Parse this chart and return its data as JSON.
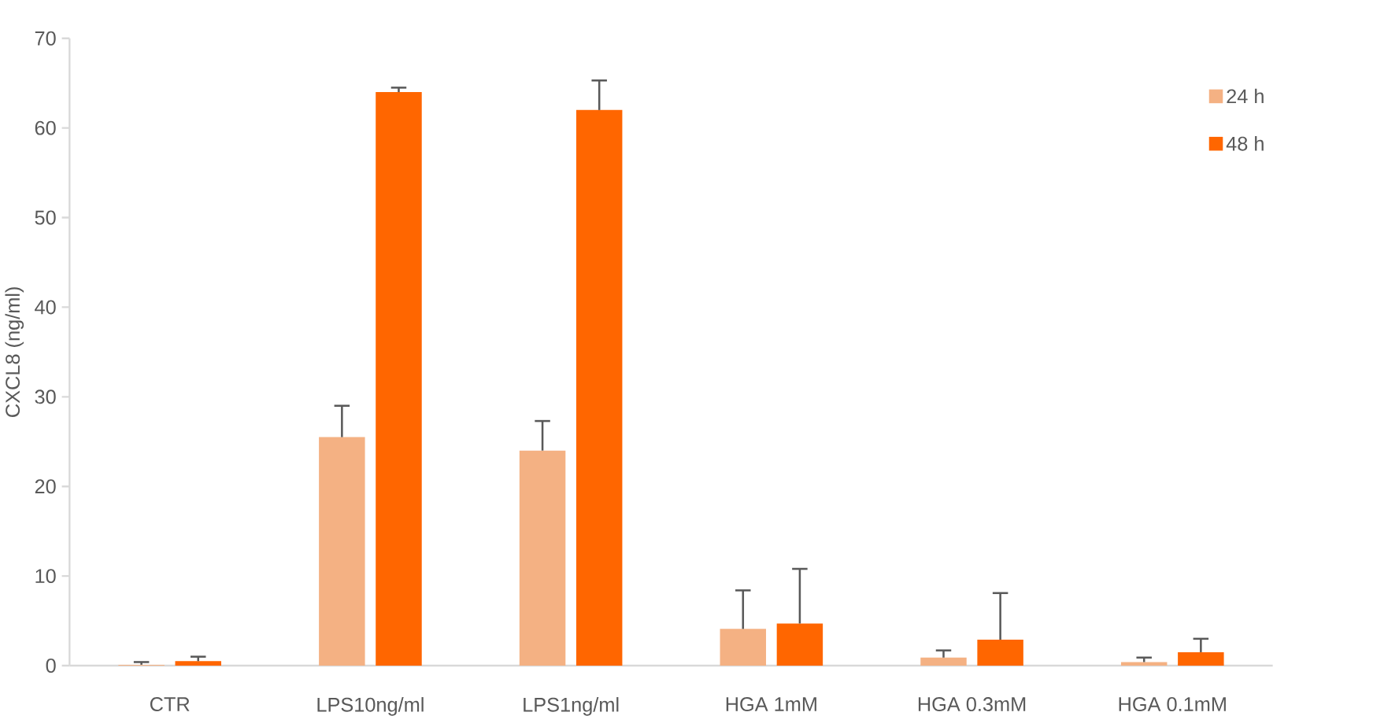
{
  "chart_data": {
    "type": "bar",
    "ylabel": "CXCL8 (ng/ml)",
    "categories": [
      "CTR",
      "LPS10ng/ml",
      "LPS1ng/ml",
      "HGA 1mM",
      "HGA 0.3mM",
      "HGA 0.1mM"
    ],
    "series": [
      {
        "name": "24 h",
        "color": "#f4b183",
        "values": [
          0.1,
          25.5,
          24,
          4.1,
          0.9,
          0.4
        ],
        "errors": [
          [
            0.1,
            0.4
          ],
          [
            25.5,
            29
          ],
          [
            24,
            27.3
          ],
          [
            4.1,
            8.4
          ],
          [
            0.9,
            1.7
          ],
          [
            0.4,
            0.9
          ]
        ]
      },
      {
        "name": "48 h",
        "color": "#ff6600",
        "values": [
          0.5,
          64,
          62,
          4.7,
          2.9,
          1.5
        ],
        "errors": [
          [
            0.5,
            1
          ],
          [
            64,
            64.5
          ],
          [
            62,
            65.3
          ],
          [
            4.7,
            10.8
          ],
          [
            2.9,
            8.1
          ],
          [
            1.5,
            3.0
          ]
        ]
      }
    ],
    "ylim": [
      0,
      70
    ],
    "yticks": [
      0,
      10,
      20,
      30,
      40,
      50,
      60,
      70
    ],
    "grid": false,
    "legend": "top right"
  }
}
